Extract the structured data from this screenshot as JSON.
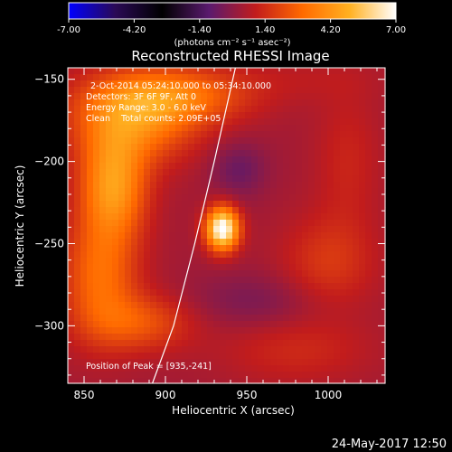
{
  "colors": {
    "background": "#000000",
    "text": "#ffffff",
    "limb": "#ffffff"
  },
  "colorbar": {
    "ticks": [
      -7.0,
      -4.2,
      -1.4,
      1.4,
      4.2,
      7.0
    ],
    "tick_labels": [
      "-7.00",
      "-4.20",
      "-1.40",
      "1.40",
      "4.20",
      "7.00"
    ],
    "unit": "(photons cm⁻² s⁻¹ asec⁻²)",
    "range": [
      -7.0,
      7.0
    ],
    "stops": [
      "#0000ff",
      "#2a0a55",
      "#000000",
      "#5a1a6e",
      "#c21c1c",
      "#ff6a00",
      "#ffb020",
      "#ffffff"
    ]
  },
  "chart_data": {
    "type": "heatmap",
    "title": "Reconstructed RHESSI Image",
    "xlabel": "Heliocentric X (arcsec)",
    "ylabel": "Heliocentric Y (arcsec)",
    "xlim": [
      840,
      1035
    ],
    "ylim": [
      -335,
      -143
    ],
    "xticks": [
      850,
      900,
      950,
      1000
    ],
    "xtick_labels": [
      "850",
      "900",
      "950",
      "1000"
    ],
    "yticks": [
      -150,
      -200,
      -250,
      -300
    ],
    "ytick_labels": [
      "−150",
      "−200",
      "−250",
      "−300"
    ],
    "annotations": [
      "2-Oct-2014 05:24:10.000 to 05:34:10.000",
      "Detectors: 3F 6F 9F, Att 0",
      "Energy Range: 3.0 - 6.0 keV",
      "Clean    Total counts: 2.09E+05"
    ],
    "peak_label": "Position of Peak = [935,-241]",
    "peak": [
      935,
      -241
    ],
    "limb_curve": [
      [
        892,
        -335
      ],
      [
        905,
        -300
      ],
      [
        918,
        -250
      ],
      [
        930,
        -200
      ],
      [
        943,
        -143
      ]
    ],
    "components": [
      {
        "x": 935,
        "y": -241,
        "sx": 7,
        "sy": 9,
        "amp": 7.0
      },
      {
        "x": 868,
        "y": -215,
        "sx": 14,
        "sy": 22,
        "amp": 3.8
      },
      {
        "x": 880,
        "y": -175,
        "sx": 26,
        "sy": 18,
        "amp": 3.2
      },
      {
        "x": 905,
        "y": -160,
        "sx": 32,
        "sy": 12,
        "amp": 2.6
      },
      {
        "x": 860,
        "y": -270,
        "sx": 16,
        "sy": 26,
        "amp": 2.6
      },
      {
        "x": 885,
        "y": -298,
        "sx": 22,
        "sy": 12,
        "amp": 1.9
      },
      {
        "x": 1000,
        "y": -262,
        "sx": 20,
        "sy": 20,
        "amp": 1.3
      },
      {
        "x": 980,
        "y": -315,
        "sx": 32,
        "sy": 14,
        "amp": 0.9
      },
      {
        "x": 1012,
        "y": -200,
        "sx": 14,
        "sy": 30,
        "amp": 0.8
      },
      {
        "x": 985,
        "y": -150,
        "sx": 35,
        "sy": 10,
        "amp": 0.4
      },
      {
        "x": 945,
        "y": -205,
        "sx": 12,
        "sy": 12,
        "amp": -1.1
      },
      {
        "x": 955,
        "y": -285,
        "sx": 30,
        "sy": 12,
        "amp": -0.8
      }
    ],
    "base_level": 0.4
  },
  "footer": {
    "timestamp": "24-May-2017 12:50"
  }
}
